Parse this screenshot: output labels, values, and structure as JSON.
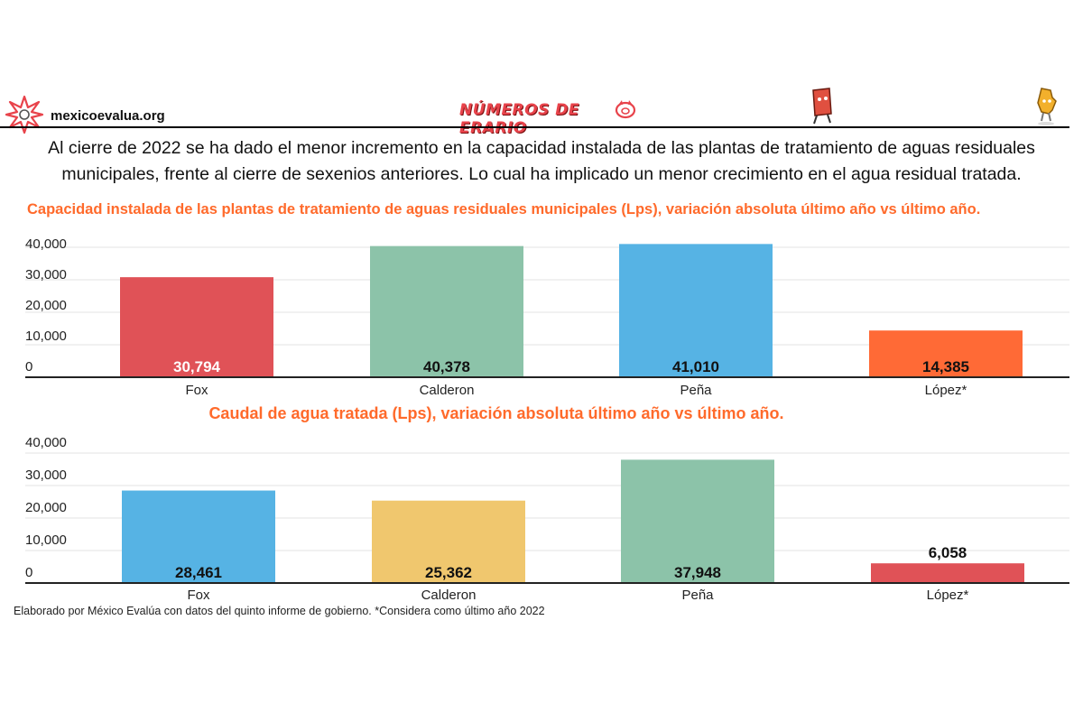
{
  "header": {
    "site": "mexicoevalua.org",
    "brand": "NÚMEROS DE ERARIO"
  },
  "headline": "Al cierre de 2022 se ha dado el menor incremento en la capacidad instalada de las plantas de tratamiento de aguas residuales municipales, frente al cierre de sexenios anteriores. Lo cual ha implicado un menor crecimiento en el agua residual tratada.",
  "chart_data": [
    {
      "type": "bar",
      "title": "Capacidad instalada de las plantas de tratamiento de aguas residuales municipales (Lps), variación absoluta último año vs último año.",
      "categories": [
        "Fox",
        "Calderon",
        "Peña",
        "López*"
      ],
      "values": [
        30794,
        40378,
        41010,
        14385
      ],
      "value_labels": [
        "30,794",
        "40,378",
        "41,010",
        "14,385"
      ],
      "colors": [
        "#e05257",
        "#8cc3a9",
        "#56b3e4",
        "#ff6a36"
      ],
      "label_colors": [
        "#ffffff",
        "#111111",
        "#111111",
        "#111111"
      ],
      "ylim": [
        0,
        40000
      ],
      "yticks": [
        0,
        10000,
        20000,
        30000,
        40000
      ],
      "ytick_labels": [
        "0",
        "10,000",
        "20,000",
        "30,000",
        "40,000"
      ],
      "grid": true,
      "xlabel": "",
      "ylabel": ""
    },
    {
      "type": "bar",
      "title": "Caudal de agua tratada (Lps), variación absoluta último año vs último año.",
      "categories": [
        "Fox",
        "Calderon",
        "Peña",
        "López*"
      ],
      "values": [
        28461,
        25362,
        37948,
        6058
      ],
      "value_labels": [
        "28,461",
        "25,362",
        "37,948",
        "6,058"
      ],
      "colors": [
        "#56b3e4",
        "#f0c76e",
        "#8cc3a9",
        "#e05257"
      ],
      "label_colors": [
        "#111111",
        "#111111",
        "#111111",
        "#111111"
      ],
      "ylim": [
        0,
        40000
      ],
      "yticks": [
        0,
        10000,
        20000,
        30000,
        40000
      ],
      "ytick_labels": [
        "0",
        "10,000",
        "20,000",
        "30,000",
        "40,000"
      ],
      "grid": true,
      "xlabel": "",
      "ylabel": ""
    }
  ],
  "footnote": "Elaborado por México Evalúa con datos del quinto informe de gobierno. *Considera como último año 2022"
}
